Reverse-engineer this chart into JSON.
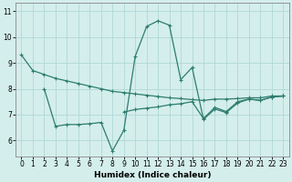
{
  "xlabel": "Humidex (Indice chaleur)",
  "background_color": "#d4eeec",
  "grid_color": "#b0d8d5",
  "line_color": "#2d7d6e",
  "ylim": [
    5.4,
    11.3
  ],
  "yticks": [
    6,
    7,
    8,
    9,
    10,
    11
  ],
  "xticks": [
    0,
    1,
    2,
    3,
    4,
    5,
    6,
    7,
    8,
    9,
    10,
    11,
    12,
    13,
    14,
    15,
    16,
    17,
    18,
    19,
    20,
    21,
    22,
    23
  ],
  "line1_x": [
    0,
    1,
    2,
    3,
    4,
    5,
    6,
    7,
    8,
    9,
    10,
    11,
    12,
    13,
    14,
    15,
    16,
    17,
    18,
    19,
    20,
    21,
    22,
    23
  ],
  "line1_y": [
    9.3,
    8.7,
    8.55,
    8.4,
    8.3,
    8.2,
    8.1,
    8.0,
    7.9,
    7.85,
    7.8,
    7.75,
    7.7,
    7.65,
    7.62,
    7.58,
    7.55,
    7.6,
    7.6,
    7.62,
    7.65,
    7.65,
    7.72,
    7.72
  ],
  "line2_x": [
    2,
    3,
    4,
    5,
    6,
    7,
    8,
    9,
    10,
    11,
    12,
    13,
    14,
    15,
    16,
    17,
    18,
    19,
    20,
    21,
    22,
    23
  ],
  "line2_y": [
    8.0,
    6.55,
    6.62,
    6.62,
    6.65,
    6.7,
    5.6,
    6.4,
    9.25,
    10.4,
    10.62,
    10.45,
    8.35,
    8.82,
    6.82,
    7.22,
    7.08,
    7.45,
    7.6,
    7.55,
    7.68,
    7.72
  ],
  "line3_x": [
    9,
    10,
    11,
    12,
    13,
    14,
    15,
    16,
    17,
    18,
    19,
    20,
    21,
    22,
    23
  ],
  "line3_y": [
    7.1,
    7.2,
    7.25,
    7.3,
    7.38,
    7.42,
    7.5,
    6.85,
    7.28,
    7.12,
    7.5,
    7.6,
    7.55,
    7.68,
    7.72
  ]
}
